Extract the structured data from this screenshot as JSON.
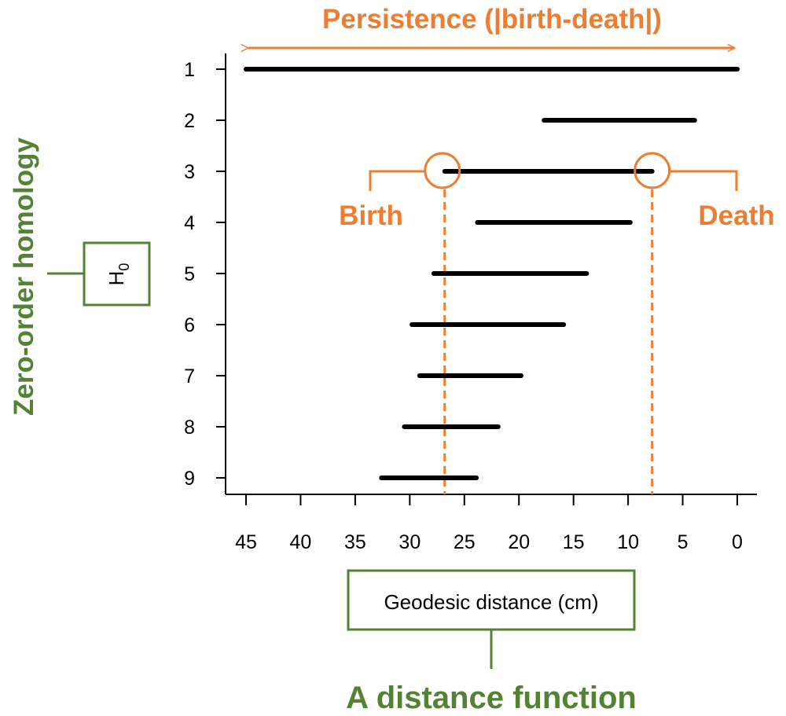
{
  "chart_data": {
    "type": "barcode",
    "title": "Persistence (|birth-death|)",
    "xlabel": "Geodesic distance (cm)",
    "ylabel": "H0",
    "xlim": [
      45,
      0
    ],
    "x_ticks": [
      45,
      40,
      35,
      30,
      25,
      20,
      15,
      10,
      5,
      0
    ],
    "categories": [
      "1",
      "2",
      "3",
      "4",
      "5",
      "6",
      "7",
      "8",
      "9"
    ],
    "bars": [
      {
        "label": "1",
        "start": 45,
        "end": 0
      },
      {
        "label": "2",
        "start": 17.7,
        "end": 3.9
      },
      {
        "label": "3",
        "start": 26.8,
        "end": 7.8
      },
      {
        "label": "4",
        "start": 23.8,
        "end": 9.8
      },
      {
        "label": "5",
        "start": 27.8,
        "end": 13.8
      },
      {
        "label": "6",
        "start": 29.8,
        "end": 15.9
      },
      {
        "label": "7",
        "start": 29.1,
        "end": 19.8
      },
      {
        "label": "8",
        "start": 30.5,
        "end": 21.9
      },
      {
        "label": "9",
        "start": 32.6,
        "end": 23.9
      }
    ],
    "highlight": {
      "row": "3",
      "birth": 26.8,
      "death": 7.8
    }
  },
  "annotations": {
    "persistence": "Persistence (|birth-death|)",
    "birth": "Birth",
    "death": "Death",
    "zero_order": "Zero-order homology",
    "h0_main": "H",
    "h0_sub": "0",
    "distance_function": "A distance function",
    "xlabel_box": "Geodesic distance (cm)"
  },
  "colors": {
    "orange": "#ED7D31",
    "green": "#548235",
    "bar": "#000000"
  }
}
